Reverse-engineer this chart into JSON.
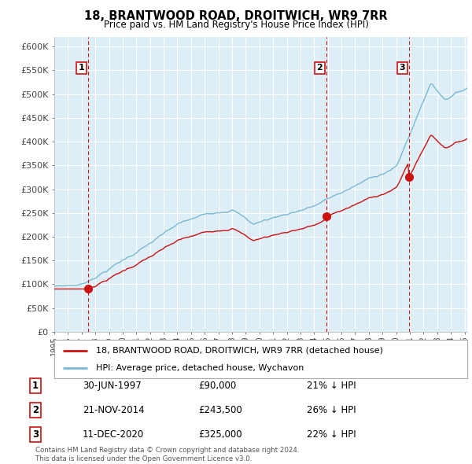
{
  "title": "18, BRANTWOOD ROAD, DROITWICH, WR9 7RR",
  "subtitle": "Price paid vs. HM Land Registry's House Price Index (HPI)",
  "ylabel_values": [
    0,
    50000,
    100000,
    150000,
    200000,
    250000,
    300000,
    350000,
    400000,
    450000,
    500000,
    550000,
    600000
  ],
  "ylim": [
    0,
    620000
  ],
  "xlim_start": 1995.0,
  "xlim_end": 2025.2,
  "purchases": [
    {
      "date_num": 1997.5,
      "price": 90000,
      "label": "1"
    },
    {
      "date_num": 2014.9,
      "price": 243500,
      "label": "2"
    },
    {
      "date_num": 2020.95,
      "price": 325000,
      "label": "3"
    }
  ],
  "purchase_vline_dates": [
    1997.5,
    2014.9,
    2020.95
  ],
  "legend_entries": [
    "18, BRANTWOOD ROAD, DROITWICH, WR9 7RR (detached house)",
    "HPI: Average price, detached house, Wychavon"
  ],
  "table_rows": [
    [
      "1",
      "30-JUN-1997",
      "£90,000",
      "21% ↓ HPI"
    ],
    [
      "2",
      "21-NOV-2014",
      "£243,500",
      "26% ↓ HPI"
    ],
    [
      "3",
      "11-DEC-2020",
      "£325,000",
      "22% ↓ HPI"
    ]
  ],
  "footnote": "Contains HM Land Registry data © Crown copyright and database right 2024.\nThis data is licensed under the Open Government Licence v3.0.",
  "hpi_color": "#7ab8d4",
  "price_color": "#cc1111",
  "vline_color": "#cc1111",
  "background_color": "#ffffff",
  "chart_bg_color": "#ddeef6",
  "grid_color": "#ffffff"
}
